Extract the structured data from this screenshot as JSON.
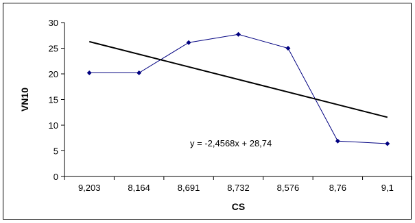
{
  "chart_data": {
    "type": "line",
    "categories": [
      "9,203",
      "8,164",
      "8,691",
      "8,732",
      "8,576",
      "8,76",
      "9,1"
    ],
    "series": [
      {
        "values": [
          20.2,
          20.2,
          26.1,
          27.7,
          25.0,
          6.9,
          6.4
        ],
        "color": "#000080"
      }
    ],
    "trendline": {
      "equation": "y = -2,4568x + 28,74",
      "slope": -2.4568,
      "intercept": 28.74,
      "color": "#000000"
    },
    "xlabel": "CS",
    "ylabel": "VN10",
    "ylim": [
      0,
      30
    ],
    "yticks": [
      "0",
      "5",
      "10",
      "15",
      "20",
      "25",
      "30"
    ],
    "grid": false,
    "legend": "none"
  }
}
